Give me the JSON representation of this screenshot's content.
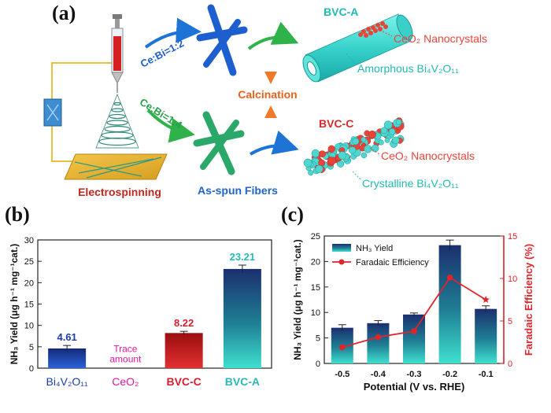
{
  "panels": {
    "a": "(a)",
    "b": "(b)",
    "c": "(c)"
  },
  "schematic": {
    "electrospinning_label": "Electrospinning",
    "ratio_top": "Ce:Bi=1:2",
    "ratio_bottom": "Ce:Bi=1:4",
    "calcination_label": "Calcination",
    "as_spun_label": "As-spun Fibers",
    "bvc_a": {
      "title": "BVC-A",
      "label1": "CeO₂ Nanocrystals",
      "label2": "Amorphous Bi₄V₂O₁₁"
    },
    "bvc_c": {
      "title": "BVC-C",
      "label1": "CeO₂ Nanocrystals",
      "label2": "Crystalline Bi₄V₂O₁₁"
    }
  },
  "chart_data": [
    {
      "type": "bar",
      "title": "",
      "categories": [
        "Bi₄V₂O₁₁",
        "CeO₂",
        "BVC-C",
        "BVC-A"
      ],
      "values": [
        4.61,
        0,
        8.22,
        23.21
      ],
      "value_labels": [
        "4.61",
        "",
        "8.22",
        "23.21"
      ],
      "errors": [
        0.7,
        0,
        0.4,
        0.9
      ],
      "annotation": "Trace amount",
      "annotation_lines": [
        "Trace",
        "amount"
      ],
      "ylabel": "NH₃ Yield (μg h⁻¹ mg⁻¹cat.)",
      "ylim": [
        0,
        30
      ],
      "yticks": [
        "0",
        "5",
        "10",
        "15",
        "20",
        "25",
        "30"
      ],
      "colors": [
        "#1a3fa8",
        "#e0189c",
        "#d81e2e",
        "#2ab9b4"
      ]
    },
    {
      "type": "bar+line",
      "categories": [
        "-0.5",
        "-0.4",
        "-0.3",
        "-0.2",
        "-0.1"
      ],
      "xlabel": "Potential (V vs. RHE)",
      "series": [
        {
          "name": "NH₃ Yield",
          "type": "bar",
          "values": [
            7.0,
            7.9,
            9.6,
            23.2,
            10.7
          ],
          "errors": [
            0.6,
            0.5,
            0.3,
            1.0,
            0.6
          ],
          "axis": "left"
        },
        {
          "name": "Faradaic Efficiency",
          "type": "line",
          "values": [
            1.9,
            3.1,
            3.8,
            10.1,
            7.5
          ],
          "axis": "right",
          "color": "#e0242c"
        }
      ],
      "ylabel_left": "NH₃ Yield (μg h⁻¹ mg⁻¹cat.)",
      "ylabel_right": "Faradaic Efficiency (%)",
      "ylim_left": [
        0,
        25
      ],
      "ylim_right": [
        0,
        15
      ],
      "yticks_left": [
        "0",
        "5",
        "10",
        "15",
        "20",
        "25"
      ],
      "yticks_right": [
        "0",
        "5",
        "10",
        "15"
      ],
      "legend": "top-left"
    }
  ]
}
